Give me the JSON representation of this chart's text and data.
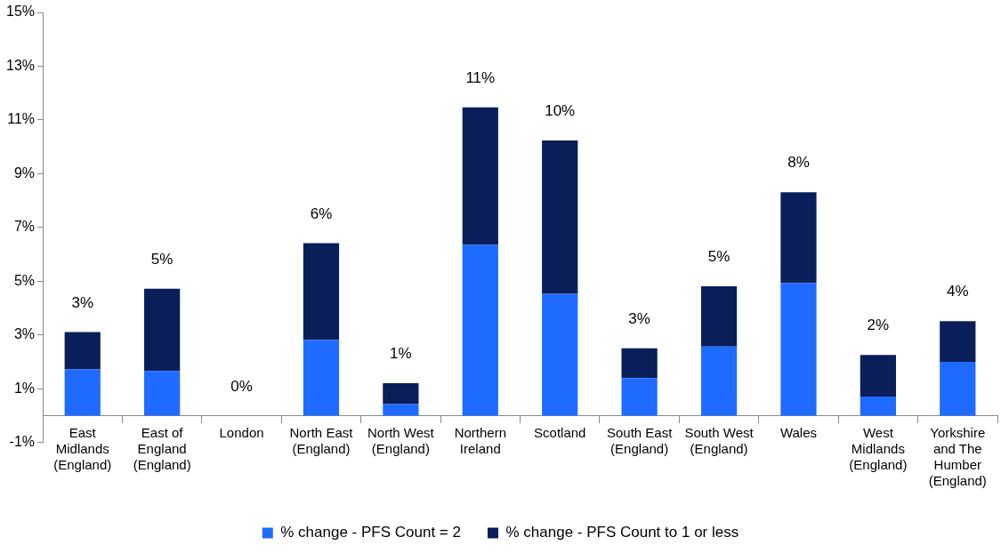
{
  "chart_data": {
    "type": "bar",
    "stacked": true,
    "categories": [
      "East Midlands (England)",
      "East of England (England)",
      "London",
      "North East (England)",
      "North West (England)",
      "Northern Ireland",
      "Scotland",
      "South East (England)",
      "South West (England)",
      "Wales",
      "West Midlands (England)",
      "Yorkshire and The Humber (England)"
    ],
    "series": [
      {
        "name": "% change - PFS Count = 2",
        "color": "#1f6bff",
        "values": [
          1.72,
          1.66,
          0,
          2.82,
          0.43,
          6.36,
          4.53,
          1.4,
          2.57,
          4.94,
          0.71,
          2.0
        ]
      },
      {
        "name": "% change - PFS Count to 1 or less",
        "color": "#0a1e5a",
        "values": [
          1.39,
          3.06,
          0,
          3.6,
          0.78,
          5.11,
          5.71,
          1.11,
          2.24,
          3.37,
          1.55,
          1.52
        ]
      }
    ],
    "totals": [
      "3%",
      "5%",
      "0%",
      "6%",
      "1%",
      "11%",
      "10%",
      "3%",
      "5%",
      "8%",
      "2%",
      "4%"
    ],
    "ylim": [
      -1,
      15
    ],
    "yticks": [
      {
        "value": -1,
        "label": "-1%"
      },
      {
        "value": 1,
        "label": "1%"
      },
      {
        "value": 3,
        "label": "3%"
      },
      {
        "value": 5,
        "label": "5%"
      },
      {
        "value": 7,
        "label": "7%"
      },
      {
        "value": 9,
        "label": "9%"
      },
      {
        "value": 11,
        "label": "11%"
      },
      {
        "value": 13,
        "label": "13%"
      },
      {
        "value": 15,
        "label": "15%"
      }
    ],
    "grid": false,
    "legend": "bottom"
  }
}
